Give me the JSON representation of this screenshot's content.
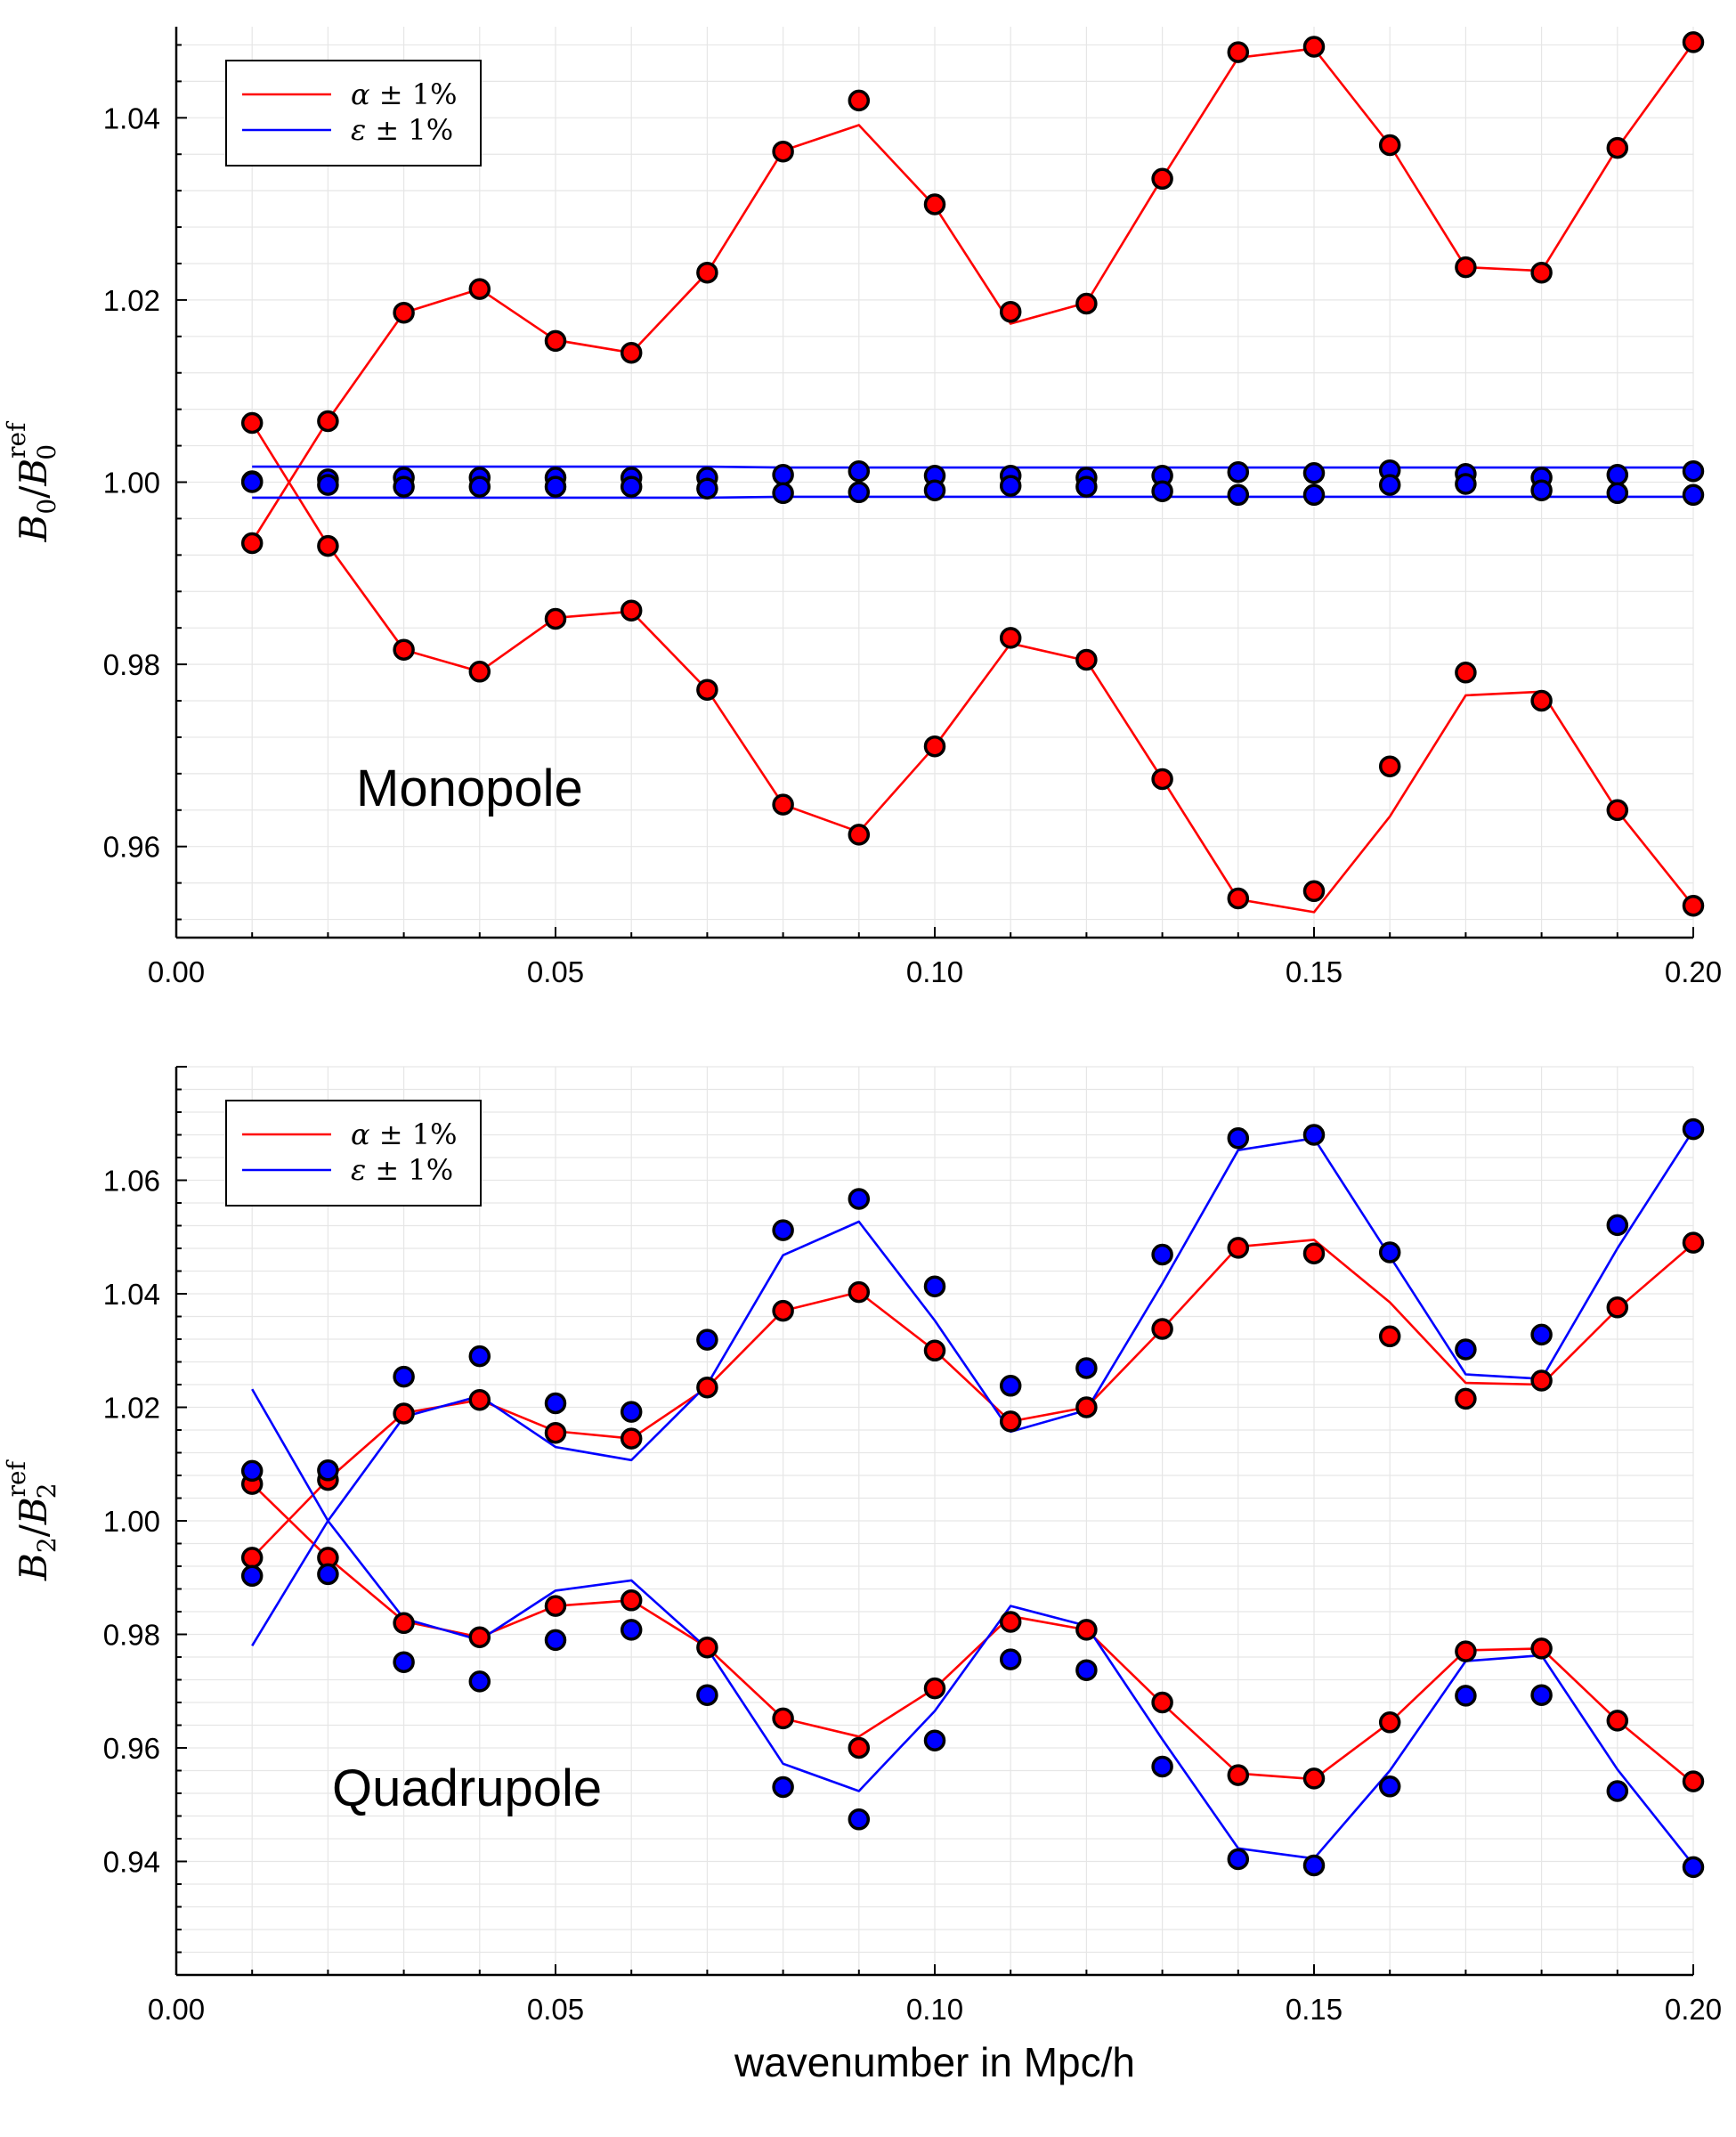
{
  "colors": {
    "alpha": "#ff0000",
    "epsilon": "#0000ff",
    "marker_edge": "#000000",
    "grid": "#e6e6e6",
    "axis": "#000000"
  },
  "xlabel": "wavenumber in Mpc/h",
  "chart_data": [
    {
      "type": "line",
      "title": "",
      "annotation": "Monopole",
      "ylabel": {
        "base": "B",
        "sub": "0",
        "sep": "/",
        "sub2": "0",
        "sup2": "ref"
      },
      "xlim": [
        0.0,
        0.2
      ],
      "ylim": [
        0.95,
        1.05
      ],
      "xticks": [
        0.0,
        0.05,
        0.1,
        0.15,
        0.2
      ],
      "xtick_labels": [
        "0.00",
        "0.05",
        "0.10",
        "0.15",
        "0.20"
      ],
      "yticks": [
        0.96,
        0.98,
        1.0,
        1.02,
        1.04
      ],
      "ytick_labels": [
        "0.96",
        "0.98",
        "1.00",
        "1.02",
        "1.04"
      ],
      "grid": true,
      "legend_position": "top-left",
      "legend": [
        {
          "symbol": "α",
          "text": "± 1%",
          "color_key": "alpha"
        },
        {
          "symbol": "ε",
          "text": "± 1%",
          "color_key": "epsilon"
        }
      ],
      "x": [
        0.01,
        0.02,
        0.03,
        0.04,
        0.05,
        0.06,
        0.07,
        0.08,
        0.09,
        0.1,
        0.11,
        0.12,
        0.13,
        0.14,
        0.15,
        0.16,
        0.17,
        0.18,
        0.19,
        0.2
      ],
      "series": [
        {
          "group": "alpha",
          "kind": "line",
          "values": [
            0.9935,
            1.0068,
            1.0186,
            1.0212,
            1.0156,
            1.0142,
            1.023,
            1.0364,
            1.0392,
            1.0303,
            1.0174,
            1.0197,
            1.0334,
            1.0466,
            1.0476,
            1.037,
            1.0236,
            1.0232,
            1.0367,
            1.0482
          ]
        },
        {
          "group": "alpha",
          "kind": "line",
          "values": [
            1.0065,
            0.9931,
            0.9816,
            0.9792,
            0.9851,
            0.9858,
            0.9772,
            0.9646,
            0.9616,
            0.971,
            0.9823,
            0.9804,
            0.9674,
            0.9542,
            0.9528,
            0.9633,
            0.9766,
            0.977,
            0.9639,
            0.9535
          ]
        },
        {
          "group": "alpha",
          "kind": "points",
          "values": [
            0.9933,
            1.0067,
            1.0186,
            1.0212,
            1.0155,
            1.0142,
            1.023,
            1.0363,
            1.0419,
            1.0305,
            1.0187,
            1.0196,
            1.0333,
            1.0472,
            1.0478,
            1.037,
            1.0236,
            1.023,
            1.0367,
            1.0483
          ]
        },
        {
          "group": "alpha",
          "kind": "points",
          "values": [
            1.0065,
            0.993,
            0.9816,
            0.9792,
            0.985,
            0.9859,
            0.9772,
            0.9646,
            0.9613,
            0.971,
            0.9829,
            0.9805,
            0.9674,
            0.9543,
            0.9551,
            0.9688,
            0.9791,
            0.976,
            0.964,
            0.9535
          ]
        },
        {
          "group": "epsilon",
          "kind": "line",
          "values": [
            1.0017,
            1.0017,
            1.0017,
            1.0017,
            1.0017,
            1.0017,
            1.0017,
            1.0016,
            1.0016,
            1.0016,
            1.0016,
            1.0016,
            1.0016,
            1.0016,
            1.0016,
            1.0016,
            1.0016,
            1.0016,
            1.0016,
            1.0016
          ]
        },
        {
          "group": "epsilon",
          "kind": "line",
          "values": [
            0.9983,
            0.9983,
            0.9983,
            0.9983,
            0.9983,
            0.9983,
            0.9983,
            0.9984,
            0.9984,
            0.9984,
            0.9984,
            0.9984,
            0.9984,
            0.9984,
            0.9984,
            0.9984,
            0.9984,
            0.9984,
            0.9984,
            0.9984
          ]
        },
        {
          "group": "epsilon",
          "kind": "points",
          "values": [
            1.0001,
            1.0003,
            1.0005,
            1.0005,
            1.0005,
            1.0005,
            1.0005,
            1.0008,
            1.0012,
            1.0007,
            1.0007,
            1.0005,
            1.0007,
            1.0011,
            1.001,
            1.0013,
            1.0009,
            1.0005,
            1.0008,
            1.0012
          ]
        },
        {
          "group": "epsilon",
          "kind": "points",
          "values": [
            1.0,
            0.9997,
            0.9995,
            0.9995,
            0.9995,
            0.9995,
            0.9993,
            0.9988,
            0.9989,
            0.9991,
            0.9996,
            0.9995,
            0.999,
            0.9986,
            0.9986,
            0.9997,
            0.9998,
            0.9991,
            0.9988,
            0.9986
          ]
        }
      ]
    },
    {
      "type": "line",
      "title": "",
      "annotation": "Quadrupole",
      "ylabel": {
        "base": "B",
        "sub": "2",
        "sep": "/",
        "sub2": "2",
        "sup2": "ref"
      },
      "xlim": [
        0.0,
        0.2
      ],
      "ylim": [
        0.92,
        1.08
      ],
      "xticks": [
        0.0,
        0.05,
        0.1,
        0.15,
        0.2
      ],
      "xtick_labels": [
        "0.00",
        "0.05",
        "0.10",
        "0.15",
        "0.20"
      ],
      "yticks": [
        0.94,
        0.96,
        0.98,
        1.0,
        1.02,
        1.04,
        1.06
      ],
      "ytick_labels": [
        "0.94",
        "0.96",
        "0.98",
        "1.00",
        "1.02",
        "1.04",
        "1.06"
      ],
      "grid": true,
      "legend_position": "top-left",
      "legend": [
        {
          "symbol": "α",
          "text": "± 1%",
          "color_key": "alpha"
        },
        {
          "symbol": "ε",
          "text": "± 1%",
          "color_key": "epsilon"
        }
      ],
      "x": [
        0.01,
        0.02,
        0.03,
        0.04,
        0.05,
        0.06,
        0.07,
        0.08,
        0.09,
        0.1,
        0.11,
        0.12,
        0.13,
        0.14,
        0.15,
        0.16,
        0.17,
        0.18,
        0.19,
        0.2
      ],
      "series": [
        {
          "group": "alpha",
          "kind": "line",
          "values": [
            0.9935,
            1.0073,
            1.019,
            1.0213,
            1.0158,
            1.0145,
            1.0235,
            1.037,
            1.0403,
            1.03,
            1.0175,
            1.02,
            1.0338,
            1.0483,
            1.0495,
            1.0385,
            1.0243,
            1.024,
            1.0373,
            1.0488
          ]
        },
        {
          "group": "alpha",
          "kind": "line",
          "values": [
            1.0065,
            0.9935,
            0.9823,
            0.9795,
            0.985,
            0.986,
            0.9777,
            0.9652,
            0.962,
            0.9705,
            0.9832,
            0.9808,
            0.9678,
            0.9555,
            0.9545,
            0.9645,
            0.9772,
            0.9775,
            0.9648,
            0.9538
          ]
        },
        {
          "group": "alpha",
          "kind": "points",
          "values": [
            0.9935,
            1.0072,
            1.0189,
            1.0213,
            1.0155,
            1.0145,
            1.0235,
            1.037,
            1.0403,
            1.03,
            1.0175,
            1.02,
            1.0338,
            1.0481,
            1.0471,
            1.0325,
            1.0215,
            1.0247,
            1.0376,
            1.049
          ]
        },
        {
          "group": "alpha",
          "kind": "points",
          "values": [
            1.0065,
            0.9935,
            0.982,
            0.9795,
            0.985,
            0.986,
            0.9777,
            0.9652,
            0.96,
            0.9705,
            0.9822,
            0.9808,
            0.968,
            0.9552,
            0.9546,
            0.9645,
            0.977,
            0.9775,
            0.9648,
            0.9541
          ]
        },
        {
          "group": "epsilon",
          "kind": "line",
          "values": [
            0.978,
            1.0,
            1.0183,
            1.022,
            1.013,
            1.0107,
            1.024,
            1.0468,
            1.0527,
            1.0353,
            1.0157,
            1.0195,
            1.0418,
            1.0653,
            1.0674,
            1.0466,
            1.0258,
            1.025,
            1.048,
            1.0688
          ]
        },
        {
          "group": "epsilon",
          "kind": "line",
          "values": [
            1.0232,
            1.0,
            0.9828,
            0.979,
            0.9877,
            0.9895,
            0.9775,
            0.9572,
            0.9524,
            0.9665,
            0.985,
            0.9815,
            0.9615,
            0.9423,
            0.9405,
            0.956,
            0.9753,
            0.9763,
            0.9562,
            0.9394
          ]
        },
        {
          "group": "epsilon",
          "kind": "points",
          "values": [
            1.0088,
            1.0089,
            1.0254,
            1.029,
            1.0207,
            1.0192,
            1.0319,
            1.0512,
            1.0567,
            1.0413,
            1.0238,
            1.0269,
            1.0469,
            1.0674,
            1.068,
            1.0473,
            1.0302,
            1.0328,
            1.0521,
            1.069
          ]
        },
        {
          "group": "epsilon",
          "kind": "points",
          "values": [
            0.9903,
            0.9906,
            0.9751,
            0.9717,
            0.979,
            0.9808,
            0.9693,
            0.9531,
            0.9474,
            0.9613,
            0.9756,
            0.9737,
            0.9567,
            0.9404,
            0.9393,
            0.9532,
            0.9692,
            0.9693,
            0.9524,
            0.939
          ]
        }
      ]
    }
  ]
}
